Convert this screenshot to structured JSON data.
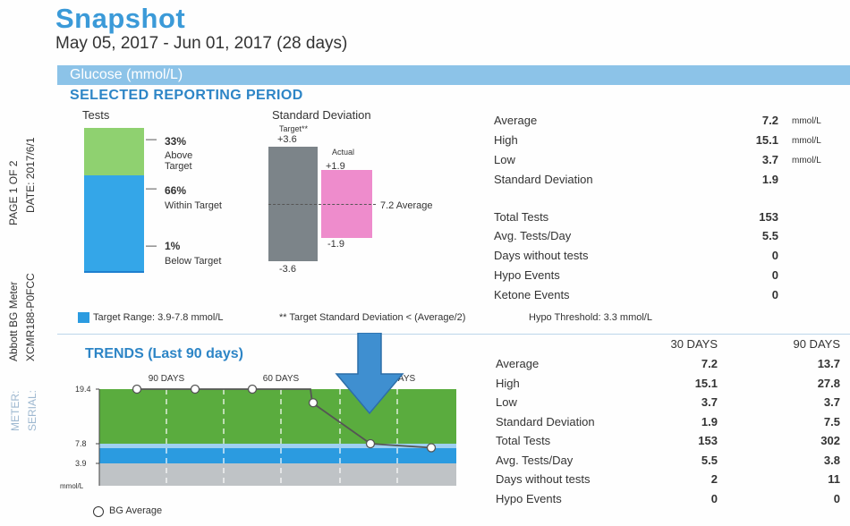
{
  "header": {
    "title": "Snapshot",
    "date_range": "May 05, 2017 - Jun 01, 2017 (28 days)",
    "band_label": "Glucose (mmol/L)",
    "period_heading": "SELECTED REPORTING PERIOD"
  },
  "side": {
    "page": "PAGE 1 OF 2",
    "date": "DATE: 2017/6/1",
    "meter_label": "METER:",
    "meter_value": "Abbott BG Meter",
    "serial_label": "SERIAL:",
    "serial_value": "XCMR188-P0FCC"
  },
  "tests": {
    "heading": "Tests",
    "above": {
      "pct": "33%",
      "label1": "Above",
      "label2": "Target",
      "fraction": 0.33
    },
    "within": {
      "pct": "66%",
      "label": "Within Target",
      "fraction": 0.66
    },
    "below": {
      "pct": "1%",
      "label": "Below Target",
      "fraction": 0.01
    },
    "colors": {
      "above": "#8fd170",
      "within": "#34a6e8",
      "below": "#1f7fcf"
    }
  },
  "sd": {
    "heading": "Standard Deviation",
    "target_label": "Target**",
    "target_plus": "+3.6",
    "target_minus": "-3.6",
    "target_value": 3.6,
    "actual_label": "Actual",
    "actual_plus": "+1.9",
    "actual_minus": "-1.9",
    "actual_value": 1.9,
    "average_label": "7.2 Average",
    "colors": {
      "target": "#7c8489",
      "actual": "#ee8ccc"
    }
  },
  "stats_selected": [
    {
      "label": "Average",
      "value": "7.2",
      "unit": "mmol/L"
    },
    {
      "label": "High",
      "value": "15.1",
      "unit": "mmol/L"
    },
    {
      "label": "Low",
      "value": "3.7",
      "unit": "mmol/L"
    },
    {
      "label": "Standard Deviation",
      "value": "1.9",
      "unit": ""
    },
    {
      "label": "Total Tests",
      "value": "153",
      "unit": ""
    },
    {
      "label": "Avg. Tests/Day",
      "value": "5.5",
      "unit": ""
    },
    {
      "label": "Days without tests",
      "value": "0",
      "unit": ""
    },
    {
      "label": "Hypo Events",
      "value": "0",
      "unit": ""
    },
    {
      "label": "Ketone Events",
      "value": "0",
      "unit": ""
    }
  ],
  "legend": {
    "target_range": "Target Range: 3.9-7.8 mmol/L",
    "target_sd_note": "** Target Standard Deviation < (Average/2)",
    "hypo_threshold": "Hypo Threshold: 3.3 mmol/L",
    "bg_average": "BG Average"
  },
  "trends": {
    "title": "TRENDS (Last 90 days)",
    "col_30": "30 DAYS",
    "col_90": "90 DAYS",
    "rows": [
      {
        "label": "Average",
        "v30": "7.2",
        "v90": "13.7"
      },
      {
        "label": "High",
        "v30": "15.1",
        "v90": "27.8"
      },
      {
        "label": "Low",
        "v30": "3.7",
        "v90": "3.7"
      },
      {
        "label": "Standard Deviation",
        "v30": "1.9",
        "v90": "7.5"
      },
      {
        "label": "Total Tests",
        "v30": "153",
        "v90": "302"
      },
      {
        "label": "Avg. Tests/Day",
        "v30": "5.5",
        "v90": "3.8"
      },
      {
        "label": "Days without tests",
        "v30": "2",
        "v90": "11"
      },
      {
        "label": "Hypo Events",
        "v30": "0",
        "v90": "0"
      }
    ]
  },
  "chart_data": {
    "type": "line",
    "x_labels": [
      "90 DAYS",
      "60 DAYS",
      "30 DAYS"
    ],
    "y_ticks": [
      "19.4",
      "7.8",
      "3.9"
    ],
    "y_unit": "mmol/L",
    "series": [
      {
        "name": "BG Average",
        "y": [
          19.4,
          19.4,
          19.4,
          19.4,
          16.5,
          7.8,
          7.0
        ]
      }
    ],
    "bands": {
      "high_top": 19.4,
      "target_high": 7.8,
      "target_low": 3.9
    },
    "colors": {
      "high": "#5aac3e",
      "target": "#2b9be0",
      "low": "#bfc3c6"
    }
  }
}
